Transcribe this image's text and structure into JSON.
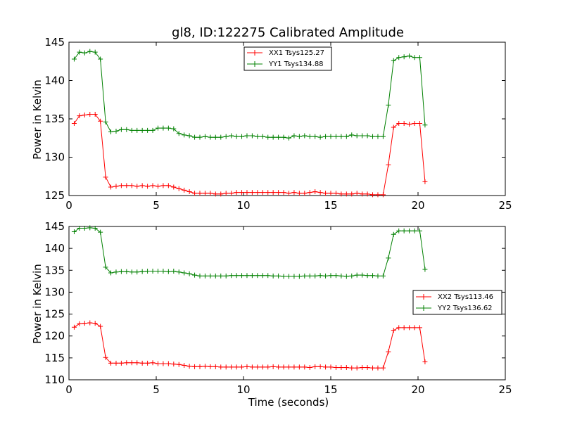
{
  "chart_data": [
    {
      "type": "line",
      "title": "gl8, ID:122275 Calibrated Amplitude",
      "xlabel": "",
      "ylabel": "Power in Kelvin",
      "xlim": [
        0,
        25
      ],
      "ylim": [
        125,
        145
      ],
      "xticks": [
        "0",
        "5",
        "10",
        "15",
        "20",
        "25"
      ],
      "yticks": [
        "125",
        "130",
        "135",
        "140",
        "145"
      ],
      "legend_position": "upper-center",
      "grid": false,
      "x": [
        0.3,
        0.6,
        0.9,
        1.2,
        1.5,
        1.8,
        2.1,
        2.4,
        2.7,
        3.0,
        3.3,
        3.6,
        3.9,
        4.2,
        4.5,
        4.8,
        5.1,
        5.4,
        5.7,
        6.0,
        6.3,
        6.6,
        6.9,
        7.2,
        7.5,
        7.8,
        8.1,
        8.4,
        8.7,
        9.0,
        9.3,
        9.6,
        9.9,
        10.2,
        10.5,
        10.8,
        11.1,
        11.4,
        11.7,
        12.0,
        12.3,
        12.6,
        12.9,
        13.2,
        13.5,
        13.8,
        14.1,
        14.4,
        14.7,
        15.0,
        15.3,
        15.6,
        15.9,
        16.2,
        16.5,
        16.8,
        17.1,
        17.4,
        17.7,
        18.0,
        18.3,
        18.6,
        18.9,
        19.2,
        19.5,
        19.8,
        20.1,
        20.4
      ],
      "series": [
        {
          "name": "XX1 Tsys125.27",
          "color": "#ff0000",
          "values": [
            134.4,
            135.4,
            135.5,
            135.6,
            135.6,
            134.7,
            127.4,
            126.1,
            126.2,
            126.3,
            126.3,
            126.3,
            126.2,
            126.3,
            126.2,
            126.3,
            126.2,
            126.3,
            126.3,
            126.1,
            125.9,
            125.7,
            125.5,
            125.3,
            125.3,
            125.3,
            125.3,
            125.2,
            125.2,
            125.3,
            125.3,
            125.4,
            125.4,
            125.4,
            125.4,
            125.4,
            125.4,
            125.4,
            125.4,
            125.4,
            125.4,
            125.3,
            125.4,
            125.3,
            125.3,
            125.4,
            125.5,
            125.4,
            125.3,
            125.3,
            125.3,
            125.2,
            125.2,
            125.2,
            125.3,
            125.2,
            125.2,
            125.1,
            125.1,
            125.1,
            129.0,
            133.9,
            134.4,
            134.4,
            134.3,
            134.4,
            134.4,
            126.8
          ]
        },
        {
          "name": "YY1 Tsys134.88",
          "color": "#008000",
          "values": [
            142.8,
            143.7,
            143.6,
            143.8,
            143.7,
            142.8,
            134.6,
            133.3,
            133.4,
            133.6,
            133.6,
            133.5,
            133.5,
            133.5,
            133.5,
            133.5,
            133.8,
            133.8,
            133.8,
            133.7,
            133.1,
            132.9,
            132.8,
            132.6,
            132.6,
            132.7,
            132.6,
            132.6,
            132.6,
            132.7,
            132.8,
            132.7,
            132.7,
            132.8,
            132.8,
            132.7,
            132.7,
            132.6,
            132.6,
            132.6,
            132.6,
            132.5,
            132.8,
            132.7,
            132.8,
            132.7,
            132.7,
            132.6,
            132.7,
            132.7,
            132.7,
            132.7,
            132.7,
            132.9,
            132.8,
            132.8,
            132.8,
            132.7,
            132.7,
            132.7,
            136.8,
            142.6,
            143.0,
            143.1,
            143.2,
            143.0,
            143.0,
            134.2
          ]
        }
      ]
    },
    {
      "type": "line",
      "title": "",
      "xlabel": "Time (seconds)",
      "ylabel": "Power in Kelvin",
      "xlim": [
        0,
        25
      ],
      "ylim": [
        110,
        145
      ],
      "xticks": [
        "0",
        "5",
        "10",
        "15",
        "20",
        "25"
      ],
      "yticks": [
        "110",
        "115",
        "120",
        "125",
        "130",
        "135",
        "140",
        "145"
      ],
      "legend_position": "center-right",
      "grid": false,
      "x": [
        0.3,
        0.6,
        0.9,
        1.2,
        1.5,
        1.8,
        2.1,
        2.4,
        2.7,
        3.0,
        3.3,
        3.6,
        3.9,
        4.2,
        4.5,
        4.8,
        5.1,
        5.4,
        5.7,
        6.0,
        6.3,
        6.6,
        6.9,
        7.2,
        7.5,
        7.8,
        8.1,
        8.4,
        8.7,
        9.0,
        9.3,
        9.6,
        9.9,
        10.2,
        10.5,
        10.8,
        11.1,
        11.4,
        11.7,
        12.0,
        12.3,
        12.6,
        12.9,
        13.2,
        13.5,
        13.8,
        14.1,
        14.4,
        14.7,
        15.0,
        15.3,
        15.6,
        15.9,
        16.2,
        16.5,
        16.8,
        17.1,
        17.4,
        17.7,
        18.0,
        18.3,
        18.6,
        18.9,
        19.2,
        19.5,
        19.8,
        20.1,
        20.4
      ],
      "series": [
        {
          "name": "XX2 Tsys113.46",
          "color": "#ff0000",
          "values": [
            122.0,
            122.8,
            122.9,
            123.0,
            122.9,
            122.2,
            115.1,
            113.8,
            113.8,
            113.8,
            113.9,
            113.9,
            113.9,
            113.8,
            113.8,
            113.9,
            113.7,
            113.7,
            113.7,
            113.6,
            113.5,
            113.3,
            113.1,
            113.0,
            113.0,
            113.1,
            113.0,
            113.0,
            112.9,
            112.9,
            112.9,
            112.9,
            112.9,
            113.0,
            112.9,
            112.9,
            112.9,
            112.9,
            113.0,
            112.9,
            112.9,
            112.9,
            112.9,
            112.9,
            112.9,
            112.8,
            113.0,
            113.0,
            112.9,
            112.9,
            112.8,
            112.8,
            112.8,
            112.7,
            112.7,
            112.8,
            112.8,
            112.7,
            112.7,
            112.7,
            116.4,
            121.3,
            121.9,
            121.9,
            121.9,
            121.9,
            121.9,
            114.1
          ]
        },
        {
          "name": "YY2 Tsys136.62",
          "color": "#008000",
          "values": [
            143.8,
            144.6,
            144.6,
            144.7,
            144.6,
            143.7,
            135.7,
            134.4,
            134.6,
            134.7,
            134.7,
            134.6,
            134.6,
            134.7,
            134.8,
            134.8,
            134.8,
            134.8,
            134.7,
            134.8,
            134.6,
            134.4,
            134.2,
            133.9,
            133.7,
            133.7,
            133.7,
            133.7,
            133.7,
            133.7,
            133.8,
            133.8,
            133.8,
            133.8,
            133.8,
            133.8,
            133.8,
            133.8,
            133.7,
            133.7,
            133.6,
            133.6,
            133.6,
            133.6,
            133.7,
            133.7,
            133.7,
            133.8,
            133.7,
            133.8,
            133.8,
            133.7,
            133.6,
            133.7,
            133.9,
            133.9,
            133.8,
            133.8,
            133.7,
            133.7,
            137.8,
            143.2,
            144.0,
            144.0,
            144.0,
            144.0,
            144.0,
            135.2
          ]
        }
      ]
    }
  ]
}
